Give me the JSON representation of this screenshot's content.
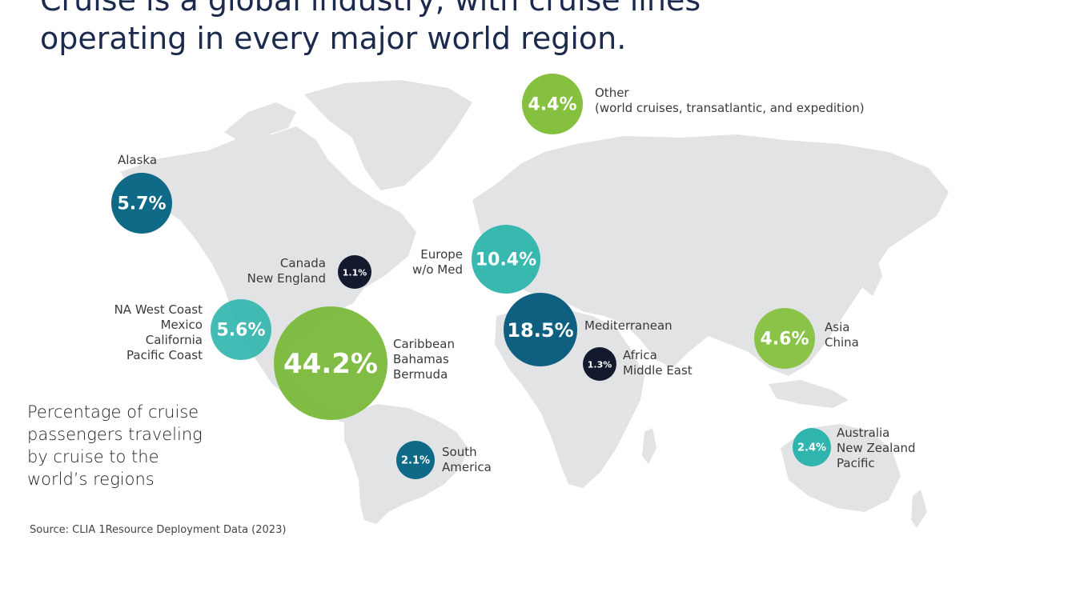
{
  "title": {
    "line1": "Cruise is a global industry, with cruise lines",
    "line2": "operating in every major world region."
  },
  "caption": {
    "line1": "Percentage of cruise",
    "line2": "passengers traveling",
    "line3": "by cruise to the",
    "line4": "world’s regions"
  },
  "source": "Source: CLIA 1Resource Deployment Data (2023)",
  "regions": [
    {
      "id": "alaska",
      "value": "5.7%",
      "label_lines": [
        "Alaska"
      ],
      "color": "#0f6a87"
    },
    {
      "id": "canada",
      "value": "1.1%",
      "label_lines": [
        "Canada",
        "New England"
      ],
      "color": "#141a2e"
    },
    {
      "id": "na-west",
      "value": "5.6%",
      "label_lines": [
        "NA West Coast",
        "Mexico",
        "California",
        "Pacific Coast"
      ],
      "color": "#2fb5ad"
    },
    {
      "id": "caribbean",
      "value": "44.2%",
      "label_lines": [
        "Caribbean",
        "Bahamas",
        "Bermuda"
      ],
      "color": "#7ab93a"
    },
    {
      "id": "south-america",
      "value": "2.1%",
      "label_lines": [
        "South",
        "America"
      ],
      "color": "#0f6a87"
    },
    {
      "id": "europe",
      "value": "10.4%",
      "label_lines": [
        "Europe",
        "w/o Med"
      ],
      "color": "#2fb5ad"
    },
    {
      "id": "mediterranean",
      "value": "18.5%",
      "label_lines": [
        "Mediterranean"
      ],
      "color": "#0e5f80"
    },
    {
      "id": "africa",
      "value": "1.3%",
      "label_lines": [
        "Africa",
        "Middle East"
      ],
      "color": "#141a2e"
    },
    {
      "id": "other",
      "value": "4.4%",
      "label_lines": [
        "Other",
        "(world cruises, transatlantic, and expedition)"
      ],
      "color": "#86c03f"
    },
    {
      "id": "asia",
      "value": "4.6%",
      "label_lines": [
        "Asia",
        "China"
      ],
      "color": "#86c03f"
    },
    {
      "id": "australia",
      "value": "2.4%",
      "label_lines": [
        "Australia",
        "New Zealand",
        "Pacific"
      ],
      "color": "#2fb5ad"
    }
  ]
}
